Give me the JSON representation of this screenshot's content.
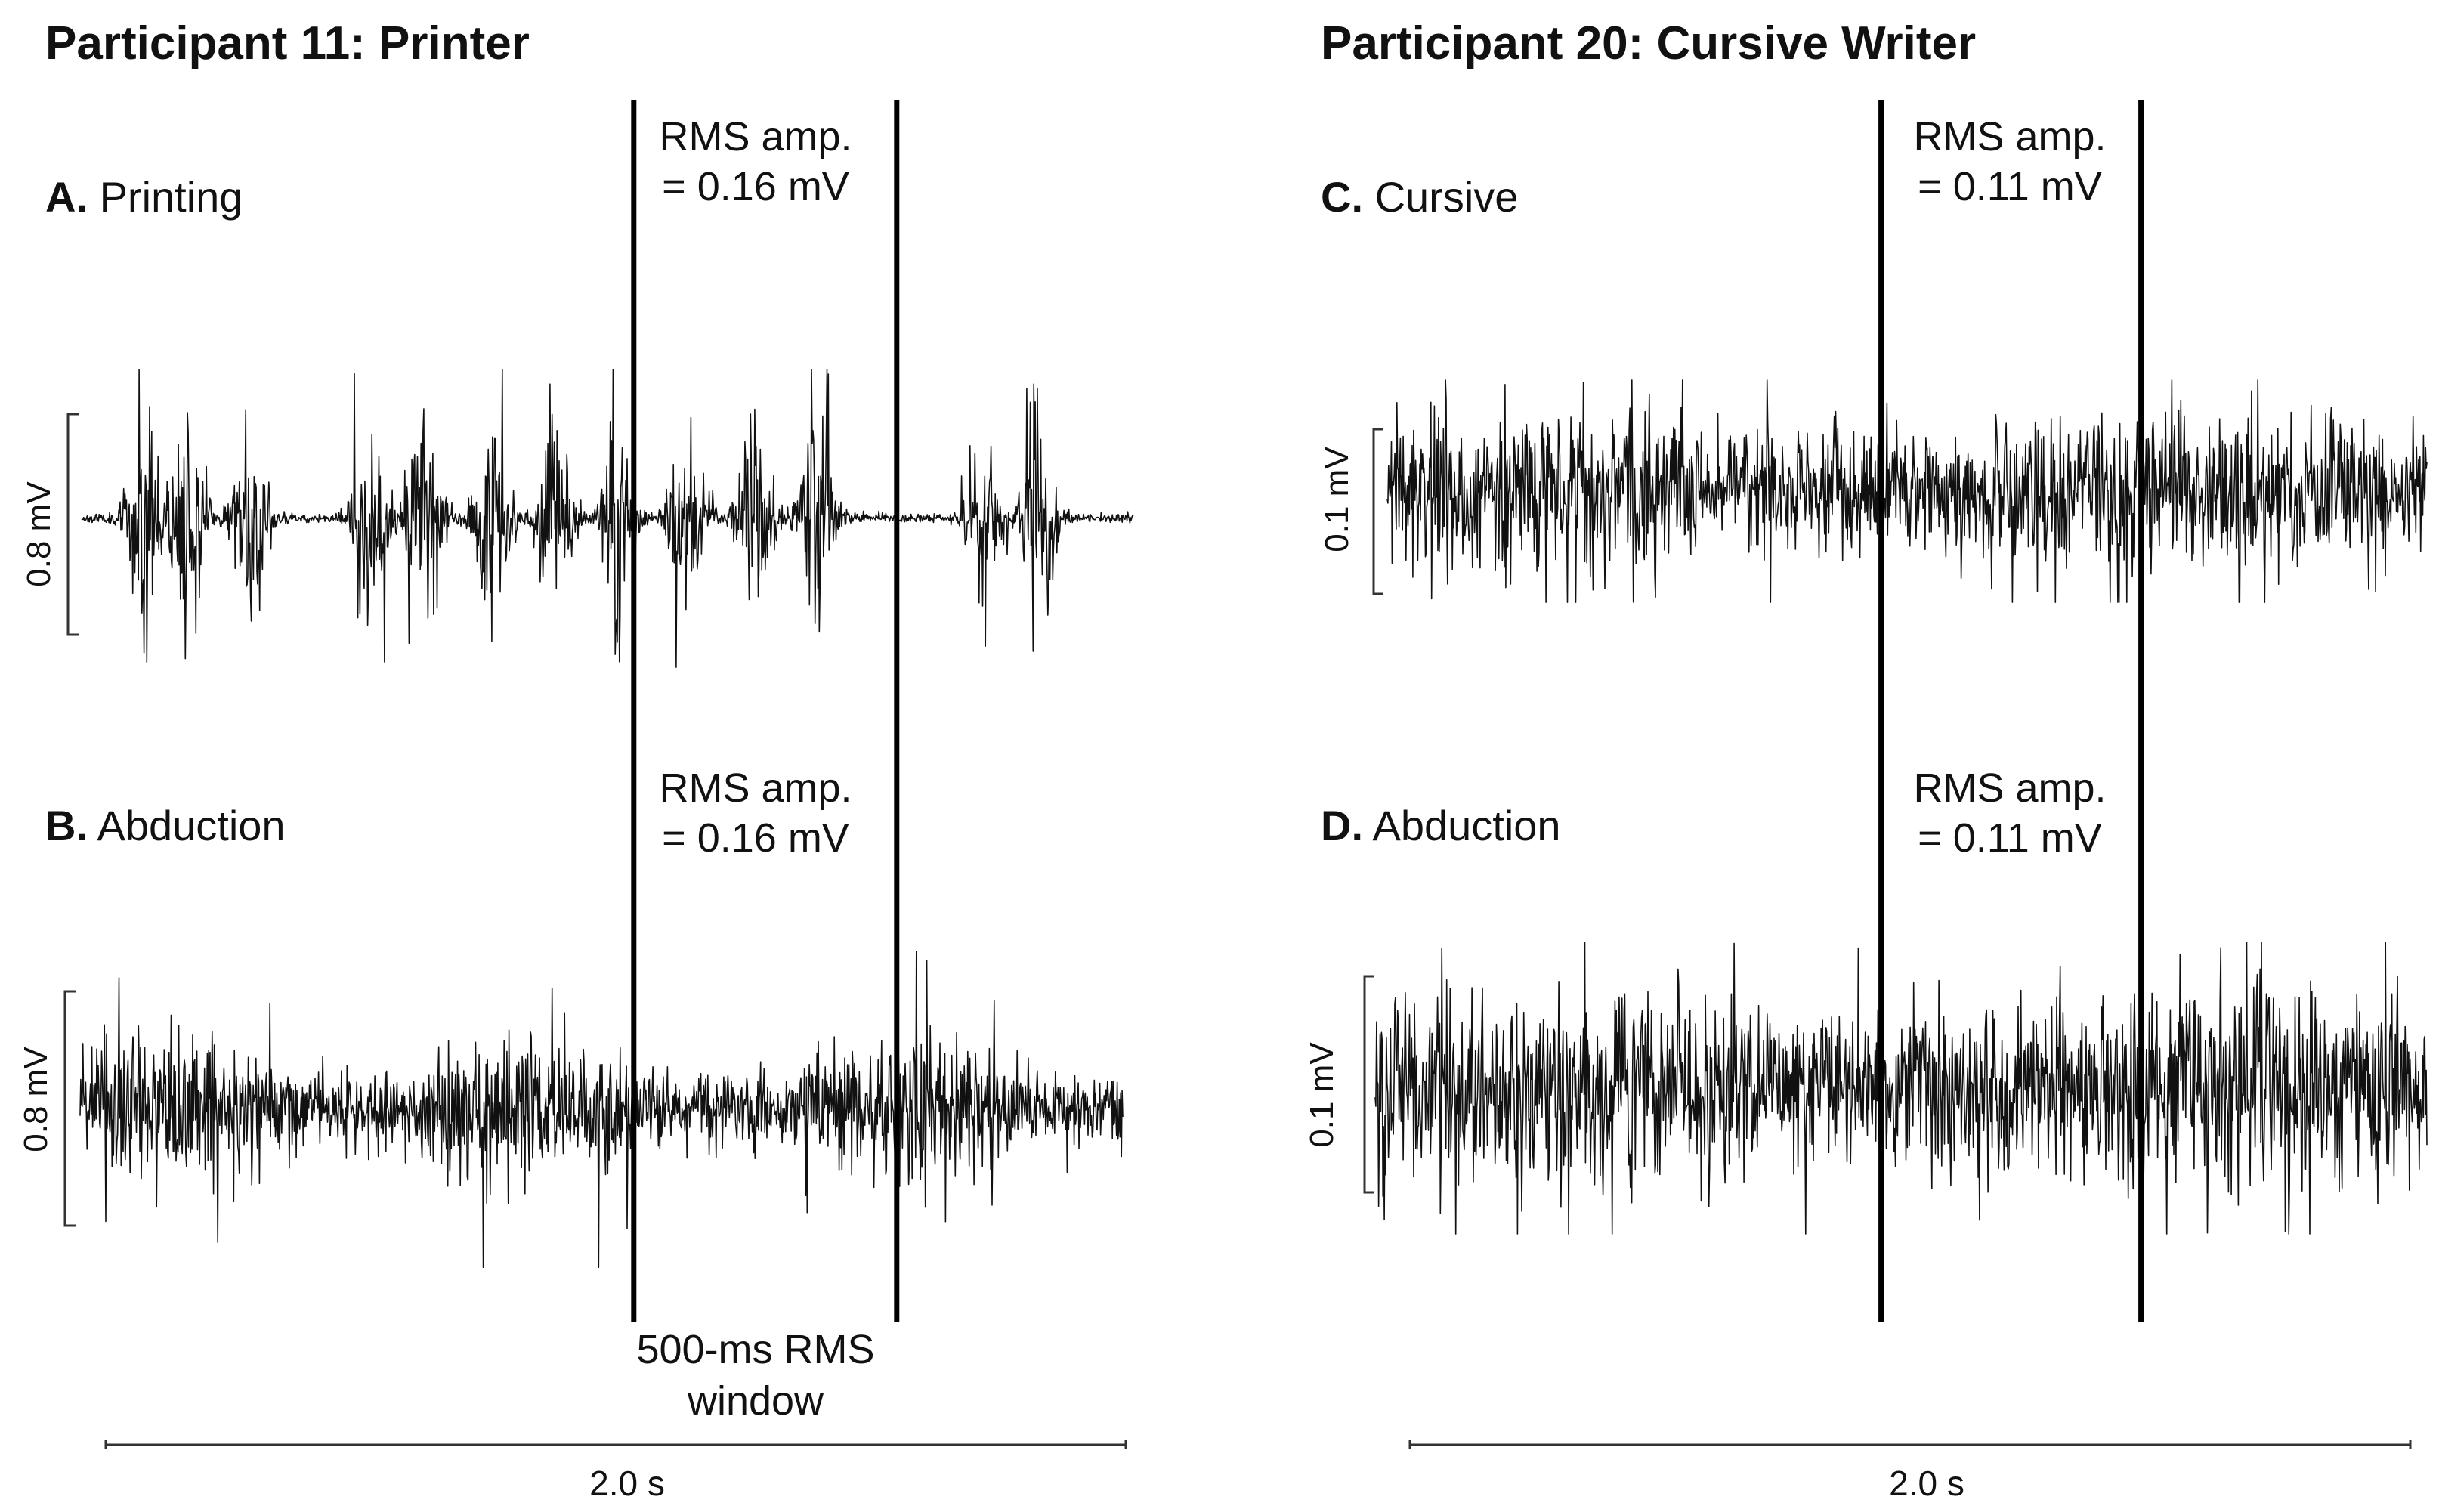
{
  "participants": [
    {
      "title": "Participant 11: Printer"
    },
    {
      "title": "Participant 20: Cursive Writer"
    }
  ],
  "window_label": [
    "500-ms RMS",
    "window"
  ],
  "chart_data": [
    {
      "type": "line",
      "panel": "A",
      "label": "Printing",
      "rms_text": [
        "RMS amp.",
        "= 0.16 mV"
      ],
      "rms_amplitude_mV": 0.16,
      "scale_bar_label": "0.8 mV",
      "scale_bar_mV": 0.8,
      "time_bar_label": "2.0 s",
      "duration_s": 2.0,
      "window_s": [
        1.05,
        1.55
      ],
      "signal_pattern": "bursts",
      "bursts_s": [
        0.12,
        0.2,
        0.32,
        0.55,
        0.65,
        0.78,
        0.9,
        1.02,
        1.15,
        1.28,
        1.4,
        1.72,
        1.82
      ],
      "color": "#111111"
    },
    {
      "type": "line",
      "panel": "B",
      "label": "Abduction",
      "rms_text": [
        "RMS amp.",
        "= 0.16 mV"
      ],
      "rms_amplitude_mV": 0.16,
      "scale_bar_label": "0.8 mV",
      "scale_bar_mV": 0.8,
      "time_bar_label": "2.0 s",
      "duration_s": 2.0,
      "window_s": [
        1.05,
        1.55
      ],
      "signal_pattern": "spikes",
      "color": "#111111"
    },
    {
      "type": "line",
      "panel": "C",
      "label": "Cursive",
      "rms_text": [
        "RMS amp.",
        "= 0.11 mV"
      ],
      "rms_amplitude_mV": 0.11,
      "scale_bar_label": "0.1 mV",
      "scale_bar_mV": 0.1,
      "time_bar_label": "2.0 s",
      "duration_s": 2.0,
      "window_s": [
        0.95,
        1.45
      ],
      "signal_pattern": "continuous",
      "color": "#111111"
    },
    {
      "type": "line",
      "panel": "D",
      "label": "Abduction",
      "rms_text": [
        "RMS amp.",
        "= 0.11 mV"
      ],
      "rms_amplitude_mV": 0.11,
      "scale_bar_label": "0.1 mV",
      "scale_bar_mV": 0.1,
      "time_bar_label": "2.0 s",
      "duration_s": 2.0,
      "window_s": [
        0.95,
        1.45
      ],
      "signal_pattern": "continuous",
      "color": "#111111"
    }
  ]
}
